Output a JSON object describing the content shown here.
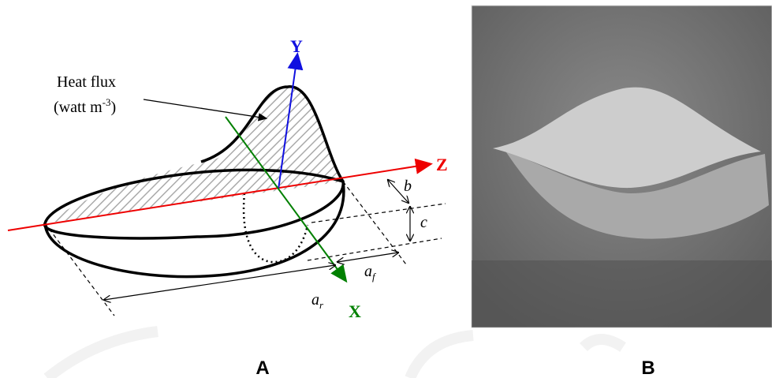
{
  "panel_a": {
    "heat_flux_label": {
      "line1": "Heat flux",
      "line2": {
        "pre": "(watt m",
        "sup": "-3",
        "post": ")"
      }
    },
    "axes": {
      "y": "Y",
      "z": "Z",
      "x": "X"
    },
    "dimensions": {
      "b": "b",
      "c": "c",
      "a_f": {
        "base": "a",
        "sub": "f"
      },
      "a_r": {
        "base": "a",
        "sub": "r"
      }
    },
    "caption": "A"
  },
  "panel_b": {
    "caption": "B"
  }
}
